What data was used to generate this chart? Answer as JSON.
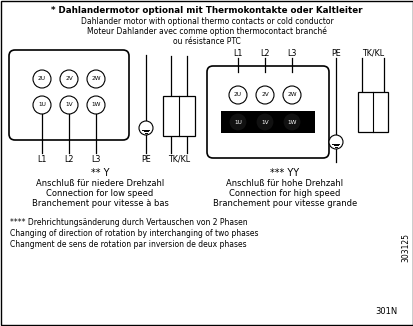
{
  "title_bold": "* Dahlandermotor optional mit Thermokontakte oder Kaltleiter",
  "title_line2": "Dahlander motor with optional thermo contacts or cold conductor",
  "title_line3": "Moteur Dahlander avec comme option thermocontact branché",
  "title_line4": "ou résistance PTC",
  "left_terminals_top": [
    "2U",
    "2V",
    "2W"
  ],
  "left_terminals_bot": [
    "1U",
    "1V",
    "1W"
  ],
  "left_caption1": "** Y",
  "left_caption2": "Anschluß für niedere Drehzahl",
  "left_caption3": "Connection for low speed",
  "left_caption4": "Branchement pour vitesse à bas",
  "right_terminals_top": [
    "2U",
    "2V",
    "2W"
  ],
  "right_terminals_bot": [
    "1U",
    "1V",
    "1W"
  ],
  "right_caption1": "*** YY",
  "right_caption2": "Anschluß für hohe Drehzahl",
  "right_caption3": "Connection for high speed",
  "right_caption4": "Branchement pour vitesse grande",
  "bottom1": "**** Drehrichtungsänderung durch Vertauschen von 2 Phasen",
  "bottom2": "Changing of direction of rotation by interchanging of two phases",
  "bottom3": "Changment de sens de rotation par inversion de deux phases",
  "bottom_code1": "303125",
  "bottom_code2": "301N",
  "bg_color": "#ffffff",
  "text_color": "#000000"
}
